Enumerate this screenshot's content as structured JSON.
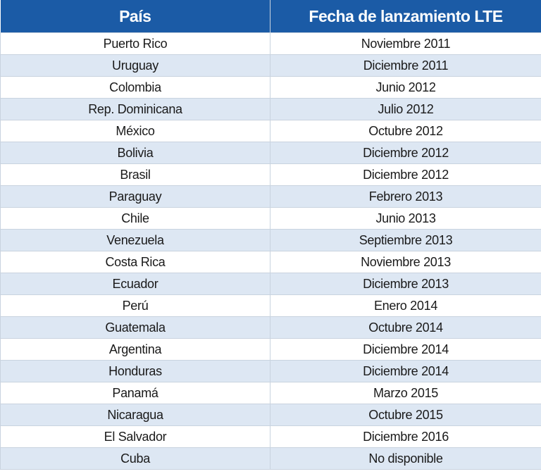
{
  "table": {
    "header": [
      "País",
      "Fecha de lanzamiento LTE"
    ],
    "rows": [
      [
        "Puerto Rico",
        "Noviembre 2011"
      ],
      [
        "Uruguay",
        "Diciembre 2011"
      ],
      [
        "Colombia",
        "Junio 2012"
      ],
      [
        "Rep. Dominicana",
        "Julio 2012"
      ],
      [
        "México",
        "Octubre 2012"
      ],
      [
        "Bolivia",
        "Diciembre 2012"
      ],
      [
        "Brasil",
        "Diciembre 2012"
      ],
      [
        "Paraguay",
        "Febrero 2013"
      ],
      [
        "Chile",
        "Junio 2013"
      ],
      [
        "Venezuela",
        "Septiembre 2013"
      ],
      [
        "Costa Rica",
        "Noviembre 2013"
      ],
      [
        "Ecuador",
        "Diciembre 2013"
      ],
      [
        "Perú",
        "Enero 2014"
      ],
      [
        "Guatemala",
        "Octubre 2014"
      ],
      [
        "Argentina",
        "Diciembre 2014"
      ],
      [
        "Honduras",
        "Diciembre 2014"
      ],
      [
        "Panamá",
        "Marzo 2015"
      ],
      [
        "Nicaragua",
        "Octubre 2015"
      ],
      [
        "El Salvador",
        "Diciembre 2016"
      ],
      [
        "Cuba",
        "No disponible"
      ]
    ]
  }
}
